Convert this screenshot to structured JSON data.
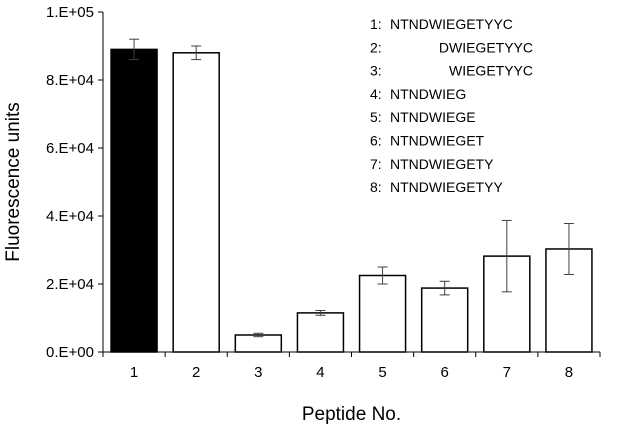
{
  "chart_data": {
    "type": "bar",
    "title": "",
    "xlabel": "Peptide No.",
    "ylabel": "Fluorescence units",
    "categories": [
      "1",
      "2",
      "3",
      "4",
      "5",
      "6",
      "7",
      "8"
    ],
    "values": [
      89000,
      88000,
      5000,
      11500,
      22500,
      18800,
      28200,
      30300
    ],
    "error": [
      3000,
      2000,
      500,
      700,
      2500,
      2000,
      10500,
      7500
    ],
    "bar_colors": [
      "#000000",
      "#ffffff",
      "#ffffff",
      "#ffffff",
      "#ffffff",
      "#ffffff",
      "#ffffff",
      "#ffffff"
    ],
    "ylim": [
      0,
      100000
    ],
    "yticks": [
      0,
      20000,
      40000,
      60000,
      80000,
      100000
    ],
    "ytick_labels": [
      "0.E+00",
      "2.E+04",
      "4.E+04",
      "6.E+04",
      "8.E+04",
      "1.E+05"
    ],
    "grid": false,
    "legend_position": "top-right",
    "legend": [
      {
        "num": "1:",
        "seq": "NTNDWIEGETYYC"
      },
      {
        "num": "2:",
        "seq": "DWIEGETYYC"
      },
      {
        "num": "3:",
        "seq": "WIEGETYYC"
      },
      {
        "num": "4:",
        "seq": "NTNDWIEG"
      },
      {
        "num": "5:",
        "seq": "NTNDWIEGE"
      },
      {
        "num": "6:",
        "seq": "NTNDWIEGET"
      },
      {
        "num": "7:",
        "seq": "NTNDWIEGETY"
      },
      {
        "num": "8:",
        "seq": "NTNDWIEGETYY"
      }
    ]
  }
}
